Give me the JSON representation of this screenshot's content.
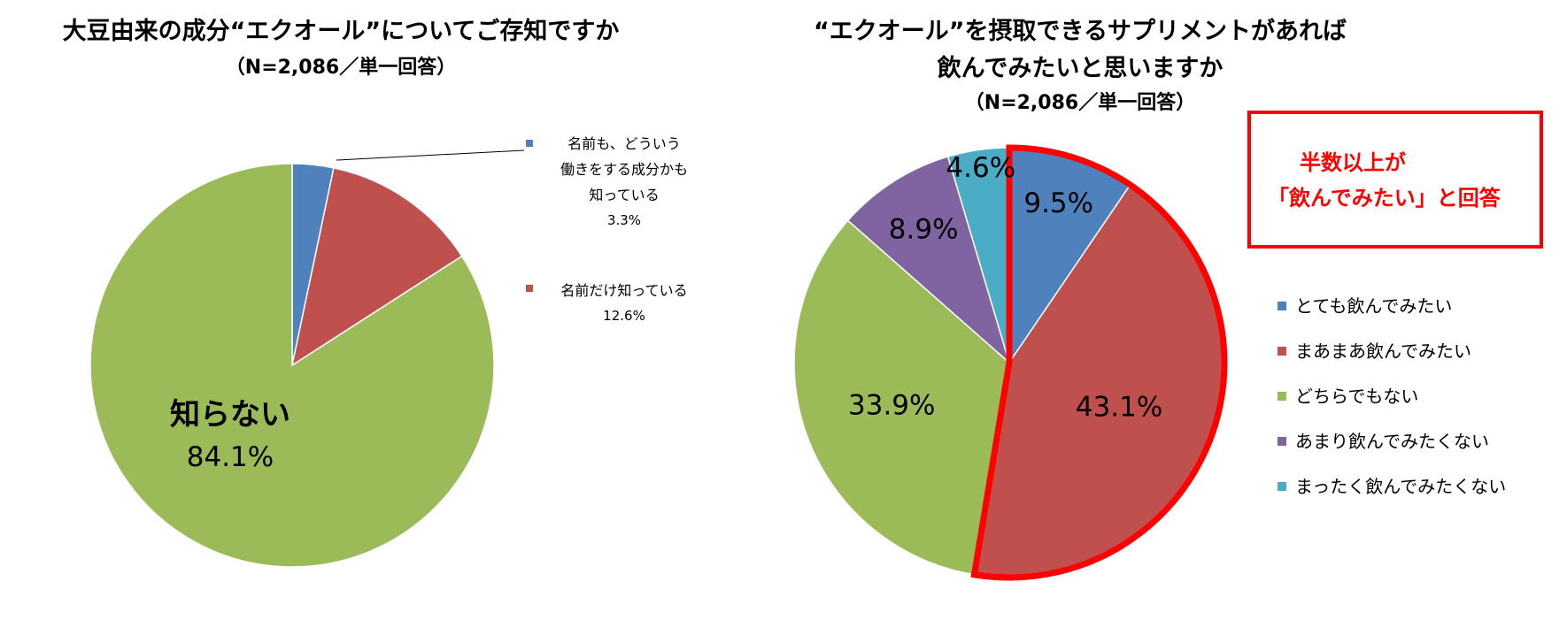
{
  "chart_data": [
    {
      "type": "pie",
      "title": "大豆由来の成分“エクオール”についてご存知ですか",
      "subtitle": "（N=2,086／単一回答）",
      "slices": [
        {
          "label_lines": [
            "名前も、どういう",
            "働きをする成分かも",
            "知っている"
          ],
          "value": 3.3,
          "value_text": "3.3%",
          "color": "#4f81bd"
        },
        {
          "label_lines": [
            "名前だけ知っている"
          ],
          "value": 12.6,
          "value_text": "12.6%",
          "color": "#c0504d"
        },
        {
          "label_lines": [
            "知らない"
          ],
          "value": 84.1,
          "value_text": "84.1%",
          "color": "#9bbb59"
        }
      ]
    },
    {
      "type": "pie",
      "title_lines": [
        "“エクオール”を摂取できるサプリメントがあれば",
        "飲んでみたいと思いますか"
      ],
      "subtitle": "（N=2,086／単一回答）",
      "slices": [
        {
          "label": "とても飲んでみたい",
          "value": 9.5,
          "value_text": "9.5%",
          "color": "#4f81bd"
        },
        {
          "label": "まあまあ飲んでみたい",
          "value": 43.1,
          "value_text": "43.1%",
          "color": "#c0504d"
        },
        {
          "label": "どちらでもない",
          "value": 33.9,
          "value_text": "33.9%",
          "color": "#9bbb59"
        },
        {
          "label": "あまり飲んでみたくない",
          "value": 8.9,
          "value_text": "8.9%",
          "color": "#8064a2"
        },
        {
          "label": "まったく飲んでみたくない",
          "value": 4.6,
          "value_text": "4.6%",
          "color": "#4bacc6"
        }
      ],
      "legend_position": "right",
      "highlight_slices": [
        0,
        1
      ],
      "highlight_color": "#ff0000"
    }
  ],
  "callout": {
    "line1": "半数以上が",
    "line2": "「飲んでみたい」と回答",
    "color": "#ff0000"
  }
}
